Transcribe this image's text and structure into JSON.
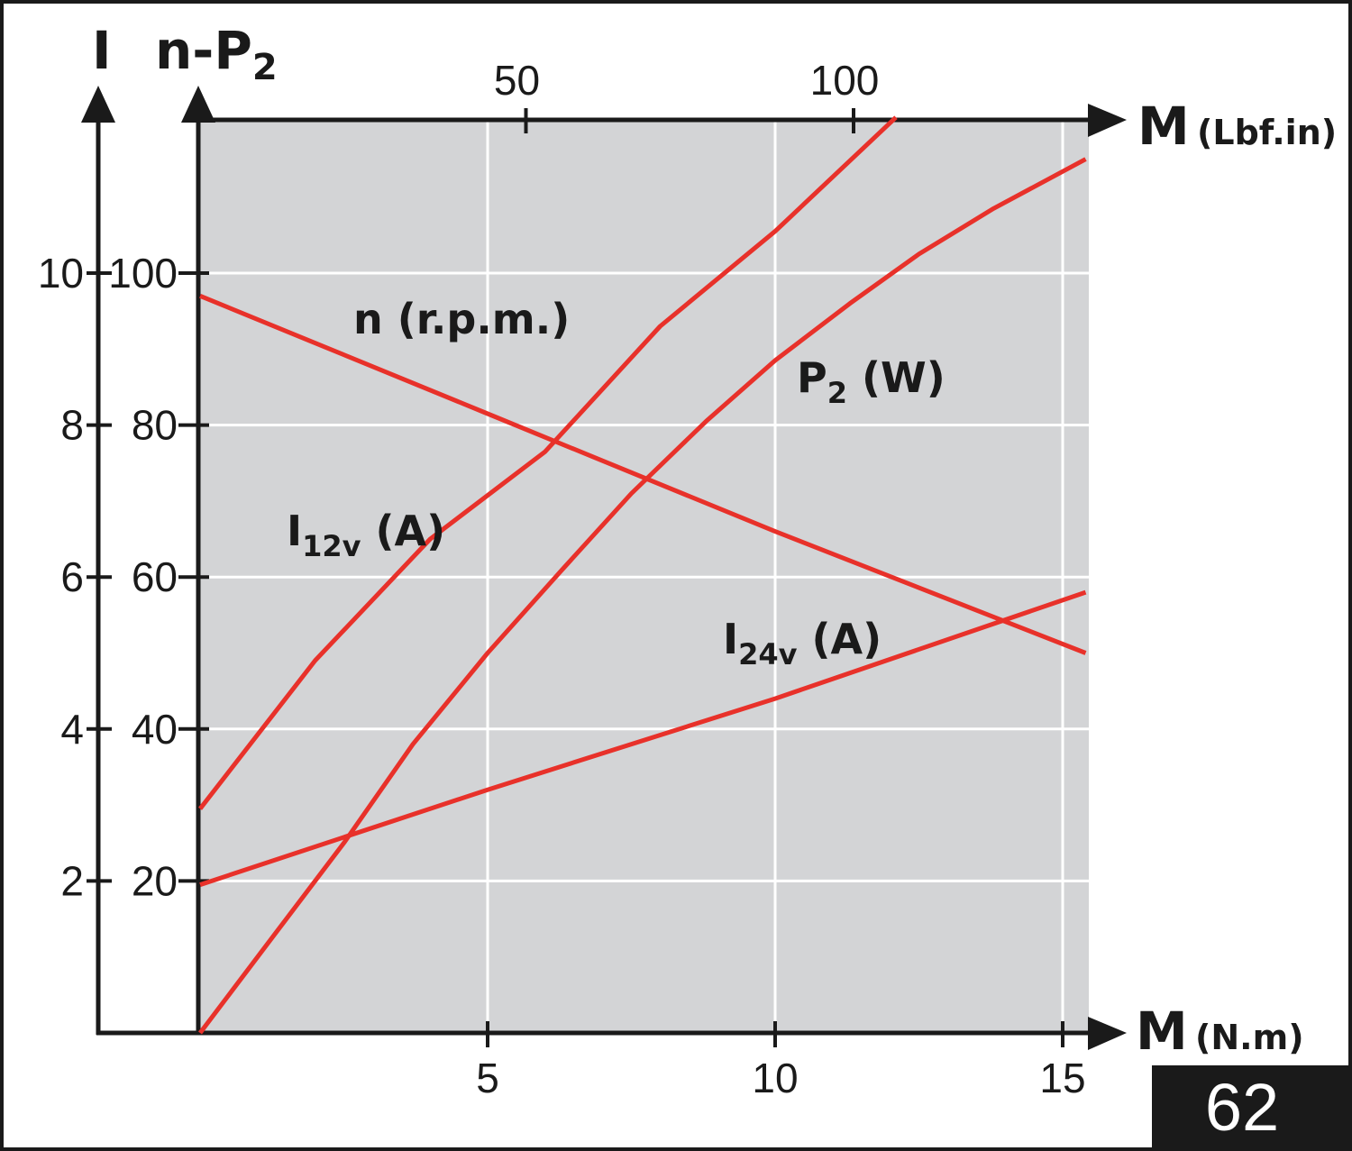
{
  "chart_data": {
    "type": "line",
    "x_axis_bottom": {
      "label": "M",
      "unit": "(N.m)",
      "ticks": [
        5,
        10,
        15
      ],
      "range": [
        0,
        15.4
      ]
    },
    "x_axis_top": {
      "label": "M",
      "unit": "(Lbf.in)",
      "ticks": [
        50,
        100
      ]
    },
    "y_axis_inner": {
      "label_main": "n-P",
      "label_sub": "2",
      "ticks": [
        20,
        40,
        60,
        80,
        100
      ],
      "range": [
        0,
        120
      ]
    },
    "y_axis_outer": {
      "label": "I",
      "ticks": [
        2,
        4,
        6,
        8,
        10
      ],
      "range": [
        0,
        12
      ]
    },
    "grid": true,
    "series": [
      {
        "name": "n (r.p.m.)",
        "label_main": "n (r.p.m.)",
        "label_sub": "",
        "label_tail": "",
        "color": "#e8312a",
        "points": [
          [
            0,
            97
          ],
          [
            5,
            81.5
          ],
          [
            10,
            66
          ],
          [
            15.4,
            50
          ]
        ]
      },
      {
        "name": "P2 (W)",
        "label_main": "P",
        "label_sub": "2",
        "label_tail": " (W)",
        "color": "#e8312a",
        "points": [
          [
            0,
            0
          ],
          [
            1.3,
            13
          ],
          [
            2.5,
            25
          ],
          [
            3.7,
            38
          ],
          [
            5,
            50
          ],
          [
            6.3,
            61
          ],
          [
            7.5,
            71
          ],
          [
            8.8,
            80.5
          ],
          [
            10,
            88.5
          ],
          [
            11.3,
            96
          ],
          [
            12.5,
            102.5
          ],
          [
            13.8,
            108.5
          ],
          [
            15.4,
            115
          ]
        ]
      },
      {
        "name": "I12v (A)",
        "label_main": "I",
        "label_sub": "12v",
        "label_tail": " (A)",
        "color": "#e8312a",
        "points": [
          [
            0,
            2.95
          ],
          [
            2,
            4.9
          ],
          [
            4,
            6.5
          ],
          [
            6,
            7.65
          ],
          [
            8,
            9.3
          ],
          [
            10,
            10.55
          ],
          [
            12.1,
            12.05
          ]
        ]
      },
      {
        "name": "I24v (A)",
        "label_main": "I",
        "label_sub": "24v",
        "label_tail": " (A)",
        "color": "#e8312a",
        "points": [
          [
            0,
            1.95
          ],
          [
            5,
            3.2
          ],
          [
            10,
            4.4
          ],
          [
            15.4,
            5.8
          ]
        ]
      }
    ],
    "background": "#d3d4d6",
    "grid_color": "#ffffff"
  },
  "badge": {
    "text": "62"
  }
}
